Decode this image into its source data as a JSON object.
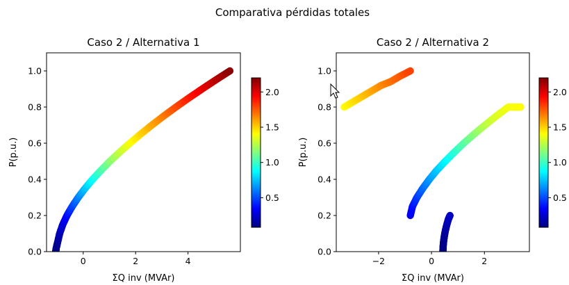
{
  "figure": {
    "suptitle": "Comparativa pérdidas totales"
  },
  "colormap": {
    "name": "jet",
    "stops": [
      "#00007f",
      "#0000ff",
      "#007fff",
      "#00ffff",
      "#7fff7f",
      "#ffff00",
      "#ff7f00",
      "#ff0000",
      "#7f0000"
    ]
  },
  "chart_data": [
    {
      "type": "scatter",
      "title": "Caso 2 / Alternativa 1",
      "xlabel": "ΣQ inv (MVAr)",
      "ylabel": "P(p.u.)",
      "xlim": [
        -1.4,
        6.0
      ],
      "ylim": [
        0.0,
        1.1
      ],
      "xticks": [
        0,
        2,
        4
      ],
      "xtick_labels": [
        "0",
        "2",
        "4"
      ],
      "yticks": [
        0.0,
        0.2,
        0.4,
        0.6,
        0.8,
        1.0
      ],
      "ytick_labels": [
        "0.0",
        "0.2",
        "0.4",
        "0.6",
        "0.8",
        "1.0"
      ],
      "colorbar": {
        "range": [
          0.08,
          2.2
        ],
        "ticks": [
          0.5,
          1.0,
          1.5,
          2.0
        ],
        "tick_labels": [
          "0.5",
          "1.0",
          "1.5",
          "2.0"
        ]
      },
      "series": [
        {
          "points": [
            [
              -1.05,
              0.0
            ],
            [
              -1.03,
              0.02
            ],
            [
              -0.98,
              0.05
            ],
            [
              -0.9,
              0.1
            ],
            [
              -0.78,
              0.15
            ],
            [
              -0.62,
              0.2
            ],
            [
              -0.42,
              0.25
            ],
            [
              -0.19,
              0.3
            ],
            [
              0.07,
              0.35
            ],
            [
              0.36,
              0.4
            ],
            [
              0.68,
              0.45
            ],
            [
              1.02,
              0.5
            ],
            [
              1.39,
              0.55
            ],
            [
              1.78,
              0.6
            ],
            [
              2.19,
              0.65
            ],
            [
              2.62,
              0.7
            ],
            [
              3.07,
              0.75
            ],
            [
              3.54,
              0.8
            ],
            [
              4.03,
              0.85
            ],
            [
              4.54,
              0.9
            ],
            [
              5.06,
              0.95
            ],
            [
              5.6,
              1.0
            ]
          ],
          "colors": [
            0.08,
            0.09,
            0.12,
            0.18,
            0.25,
            0.35,
            0.47,
            0.6,
            0.74,
            0.88,
            1.02,
            1.15,
            1.27,
            1.38,
            1.48,
            1.58,
            1.67,
            1.77,
            1.87,
            1.97,
            2.07,
            2.17
          ]
        }
      ]
    },
    {
      "type": "scatter",
      "title": "Caso 2 / Alternativa 2",
      "xlabel": "ΣQ inv (MVAr)",
      "ylabel": "P(p.u.)",
      "xlim": [
        -3.6,
        3.7
      ],
      "ylim": [
        0.0,
        1.1
      ],
      "xticks": [
        -2,
        0,
        2
      ],
      "xtick_labels": [
        "−2",
        "0",
        "2"
      ],
      "yticks": [
        0.0,
        0.2,
        0.4,
        0.6,
        0.8,
        1.0
      ],
      "ytick_labels": [
        "0.0",
        "0.2",
        "0.4",
        "0.6",
        "0.8",
        "1.0"
      ],
      "colorbar": {
        "range": [
          0.08,
          2.2
        ],
        "ticks": [
          0.5,
          1.0,
          1.5,
          2.0
        ],
        "tick_labels": [
          "0.5",
          "1.0",
          "1.5",
          "2.0"
        ]
      },
      "series": [
        {
          "points": [
            [
              0.43,
              0.0
            ],
            [
              0.44,
              0.03
            ],
            [
              0.46,
              0.06
            ],
            [
              0.49,
              0.09
            ],
            [
              0.53,
              0.12
            ],
            [
              0.58,
              0.15
            ],
            [
              0.64,
              0.18
            ],
            [
              0.7,
              0.2
            ]
          ],
          "colors": [
            0.08,
            0.09,
            0.1,
            0.12,
            0.14,
            0.17,
            0.2,
            0.23
          ]
        },
        {
          "points": [
            [
              -0.8,
              0.2
            ],
            [
              -0.72,
              0.25
            ],
            [
              -0.55,
              0.3
            ],
            [
              -0.33,
              0.35
            ],
            [
              -0.08,
              0.4
            ],
            [
              0.2,
              0.45
            ],
            [
              0.52,
              0.5
            ],
            [
              0.86,
              0.55
            ],
            [
              1.22,
              0.6
            ],
            [
              1.61,
              0.65
            ],
            [
              2.02,
              0.7
            ],
            [
              2.45,
              0.75
            ],
            [
              2.9,
              0.8
            ],
            [
              3.37,
              0.8
            ]
          ],
          "colors": [
            0.3,
            0.36,
            0.45,
            0.55,
            0.65,
            0.75,
            0.85,
            0.95,
            1.05,
            1.15,
            1.25,
            1.33,
            1.38,
            1.4
          ]
        },
        {
          "points": [
            [
              -3.3,
              0.8
            ],
            [
              -2.95,
              0.83
            ],
            [
              -2.6,
              0.86
            ],
            [
              -2.25,
              0.89
            ],
            [
              -1.9,
              0.92
            ],
            [
              -1.55,
              0.94
            ],
            [
              -1.2,
              0.97
            ],
            [
              -0.8,
              1.0
            ]
          ],
          "colors": [
            1.4,
            1.46,
            1.52,
            1.58,
            1.64,
            1.69,
            1.74,
            1.8
          ]
        }
      ]
    }
  ],
  "cursor": {
    "icon": "mouse-pointer-icon"
  }
}
